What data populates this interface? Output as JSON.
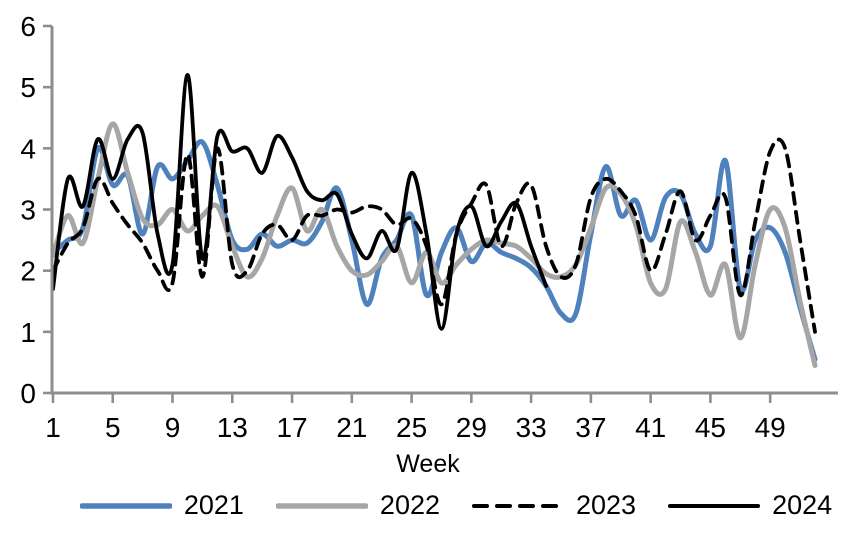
{
  "chart_data": {
    "type": "line",
    "title": "",
    "xlabel": "Week",
    "ylim": [
      0,
      6
    ],
    "yticks": [
      0,
      1,
      2,
      3,
      4,
      5,
      6
    ],
    "xticks": [
      1,
      5,
      9,
      13,
      17,
      21,
      25,
      29,
      33,
      37,
      41,
      45,
      49
    ],
    "x_range": [
      1,
      52
    ],
    "grid": false,
    "legend_position": "bottom",
    "axis_color": "#8e8e8e",
    "series": [
      {
        "name": "2021",
        "color": "#4F81BD",
        "style": "solid",
        "start_week": 1,
        "values": [
          2.3,
          2.5,
          2.7,
          4.0,
          3.4,
          3.55,
          2.6,
          3.7,
          3.5,
          3.8,
          4.1,
          3.4,
          2.5,
          2.35,
          2.6,
          2.4,
          2.5,
          2.45,
          2.8,
          3.35,
          2.5,
          1.45,
          2.2,
          2.5,
          2.9,
          1.6,
          2.3,
          2.7,
          2.15,
          2.45,
          2.3,
          2.2,
          2.05,
          1.75,
          1.3,
          1.3,
          2.6,
          3.7,
          2.9,
          3.15,
          2.5,
          3.2,
          3.25,
          2.6,
          2.4,
          3.8,
          1.7,
          2.5,
          2.7,
          2.3,
          1.4,
          0.55
        ]
      },
      {
        "name": "2022",
        "color": "#A6A6A6",
        "style": "solid",
        "start_week": 1,
        "values": [
          2.25,
          2.9,
          2.45,
          3.5,
          4.4,
          3.6,
          2.85,
          2.75,
          3.0,
          2.65,
          2.9,
          3.05,
          2.4,
          1.9,
          2.2,
          2.9,
          3.35,
          2.65,
          3.0,
          2.4,
          2.0,
          1.93,
          2.15,
          2.4,
          1.8,
          2.3,
          1.8,
          2.1,
          2.35,
          2.5,
          2.45,
          2.4,
          2.2,
          1.95,
          1.9,
          2.1,
          2.7,
          3.35,
          3.25,
          2.75,
          1.8,
          1.7,
          2.8,
          2.3,
          1.6,
          2.1,
          0.9,
          2.1,
          3.0,
          2.7,
          1.5,
          0.45
        ]
      },
      {
        "name": "2023",
        "color": "#000000",
        "style": "dashed",
        "start_week": 1,
        "values": [
          2.0,
          2.45,
          2.7,
          3.5,
          3.1,
          2.75,
          2.45,
          2.0,
          1.8,
          3.9,
          1.9,
          4.0,
          2.1,
          2.0,
          2.6,
          2.75,
          2.5,
          2.9,
          2.9,
          3.0,
          2.95,
          3.05,
          3.0,
          2.75,
          2.85,
          2.4,
          1.45,
          2.6,
          3.1,
          3.4,
          2.4,
          3.1,
          3.4,
          2.4,
          1.9,
          2.1,
          3.2,
          3.5,
          3.3,
          2.9,
          2.0,
          2.6,
          3.3,
          2.5,
          2.9,
          3.2,
          1.6,
          2.8,
          3.95,
          4.0,
          2.5,
          1.0
        ]
      },
      {
        "name": "2024",
        "color": "#000000",
        "style": "solid",
        "start_week": 1,
        "values": [
          1.7,
          3.5,
          3.05,
          4.15,
          3.5,
          4.15,
          4.25,
          2.6,
          2.1,
          5.2,
          2.2,
          4.2,
          3.95,
          4.0,
          3.6,
          4.2,
          3.85,
          3.3,
          3.15,
          3.25,
          2.6,
          2.2,
          2.65,
          2.35,
          3.6,
          2.6,
          1.05,
          2.6,
          3.05,
          2.4,
          2.8,
          3.1,
          2.4,
          1.75
        ]
      }
    ]
  },
  "legend": {
    "items": [
      {
        "label": "2021"
      },
      {
        "label": "2022"
      },
      {
        "label": "2023"
      },
      {
        "label": "2024"
      }
    ]
  }
}
